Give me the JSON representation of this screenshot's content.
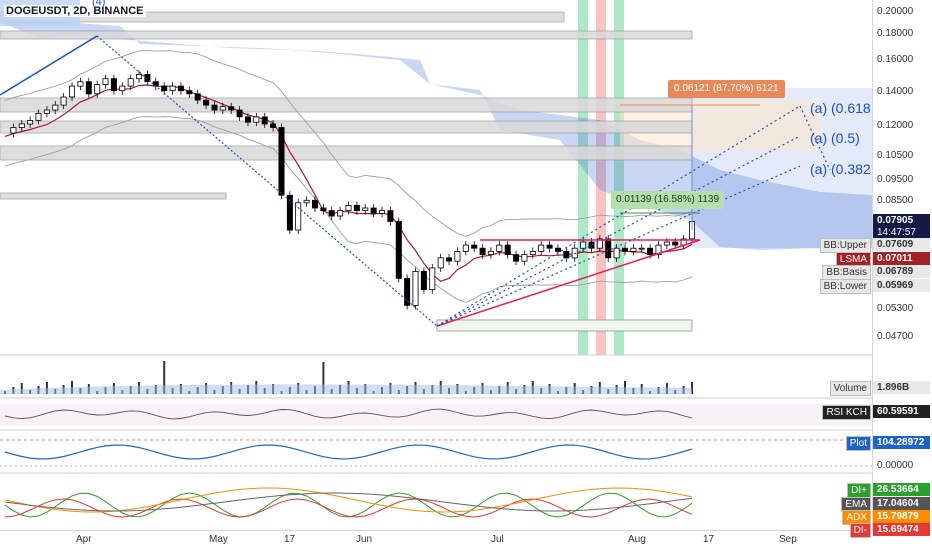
{
  "symbol_title": "DOGEUSDT, 2D, BINANCE",
  "wave_label": "(4)",
  "colors": {
    "up": "#ffffff",
    "down": "#000000",
    "lsma": "#b2182b",
    "bb": "#9e9e9e",
    "cloud": "#3d6bd6",
    "fib_text": "#1c4fc9",
    "pink": "#e91e63",
    "green_bar": "#4ccf83",
    "red_bar": "#ef5350",
    "rsi": "#555555",
    "plot": "#1e64c8",
    "di_plus": "#2ca02c",
    "ema": "#666666",
    "adx": "#ff8c00",
    "di_minus": "#e53935"
  },
  "fib_labels": [
    "(a) (0.618",
    "(a) (0.5)",
    "(a) (0.382"
  ],
  "measure_labels": {
    "big": "0.06121 (87.70%) 6121",
    "small": "0.01139 (16.58%) 1139"
  },
  "price_axis": {
    "ticks": [
      "0.20000",
      "0.18000",
      "0.16000",
      "0.14000",
      "0.12000",
      "0.10500",
      "0.09500",
      "0.08500",
      "0.05300",
      "0.04700"
    ],
    "zero_tick": "0.00000"
  },
  "price_tags": [
    {
      "id": "last",
      "label": "",
      "value": "0.07905",
      "sub": "14:47:57",
      "color": "#131a46"
    },
    {
      "id": "bb-upper",
      "label": "BB:Upper",
      "value": "0.07609",
      "color": "#e8e8e8"
    },
    {
      "id": "lsma",
      "label": "LSMA",
      "value": "0.07011",
      "color": "#a32228"
    },
    {
      "id": "bb-basis",
      "label": "BB:Basis",
      "value": "0.06789",
      "color": "#e8e8e8"
    },
    {
      "id": "bb-lower",
      "label": "BB:Lower",
      "value": "0.05969",
      "color": "#e8e8e8"
    }
  ],
  "indicator_tags": [
    {
      "id": "volume",
      "label": "Volume",
      "value": "1.896B",
      "color": "#e8e8e8"
    },
    {
      "id": "rsi",
      "label": "RSI KCH",
      "value": "60.59591",
      "color": "#222222"
    },
    {
      "id": "plot",
      "label": "Plot",
      "value": "104.28972",
      "color": "#1e64c8"
    },
    {
      "id": "di-plus",
      "label": "DI+",
      "value": "26.53664",
      "color": "#2ca02c"
    },
    {
      "id": "ema",
      "label": "EMA",
      "value": "17.04604",
      "color": "#555555"
    },
    {
      "id": "adx",
      "label": "ADX",
      "value": "15.79879",
      "color": "#ff8c00"
    },
    {
      "id": "di-minus",
      "label": "DI-",
      "value": "15.69474",
      "color": "#e53935"
    }
  ],
  "time_axis": [
    "Apr",
    "May",
    "17",
    "Jun",
    "Jul",
    "Aug",
    "17",
    "Sep"
  ],
  "chart_data": {
    "type": "candlestick",
    "title": "DOGEUSDT, 2D, BINANCE",
    "x_ticks": [
      "Apr",
      "May",
      "17",
      "Jun",
      "Jul",
      "Aug",
      "17",
      "Sep"
    ],
    "y_ticks": [
      0.2,
      0.18,
      0.16,
      0.14,
      0.12,
      0.105,
      0.095,
      0.085,
      0.053,
      0.047
    ],
    "y_scale": "log",
    "grid": false,
    "closes": [
      0.118,
      0.121,
      0.123,
      0.125,
      0.129,
      0.131,
      0.134,
      0.139,
      0.146,
      0.149,
      0.141,
      0.147,
      0.151,
      0.143,
      0.146,
      0.151,
      0.154,
      0.149,
      0.146,
      0.143,
      0.146,
      0.143,
      0.141,
      0.137,
      0.134,
      0.131,
      0.133,
      0.131,
      0.127,
      0.124,
      0.127,
      0.123,
      0.121,
      0.089,
      0.076,
      0.086,
      0.087,
      0.084,
      0.083,
      0.081,
      0.083,
      0.085,
      0.083,
      0.084,
      0.082,
      0.083,
      0.079,
      0.061,
      0.054,
      0.063,
      0.058,
      0.064,
      0.067,
      0.066,
      0.069,
      0.071,
      0.07,
      0.068,
      0.069,
      0.071,
      0.068,
      0.066,
      0.068,
      0.069,
      0.071,
      0.07,
      0.069,
      0.067,
      0.07,
      0.072,
      0.07,
      0.073,
      0.067,
      0.07,
      0.069,
      0.07,
      0.07,
      0.068,
      0.071,
      0.072,
      0.071,
      0.073,
      0.079
    ],
    "measure": {
      "big": {
        "change": 0.06121,
        "percent": 87.7,
        "ticks": 6121
      },
      "small": {
        "change": 0.01139,
        "percent": 16.58,
        "ticks": 1139
      }
    },
    "indicators": {
      "volume": 1896000000.0,
      "bb_upper": 0.07609,
      "lsma": 0.07011,
      "bb_basis": 0.06789,
      "bb_lower": 0.05969,
      "rsi_kch": 60.59591,
      "plot": 104.28972,
      "di_plus": 26.53664,
      "ema": 17.04604,
      "adx": 15.79879,
      "di_minus": 15.69474
    }
  }
}
